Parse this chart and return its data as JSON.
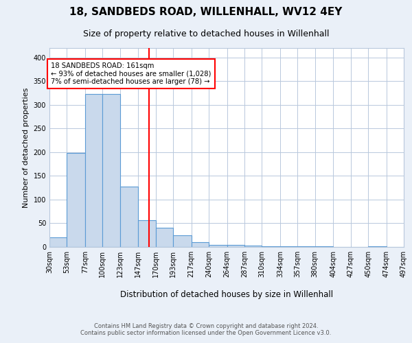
{
  "title": "18, SANDBEDS ROAD, WILLENHALL, WV12 4EY",
  "subtitle": "Size of property relative to detached houses in Willenhall",
  "xlabel": "Distribution of detached houses by size in Willenhall",
  "ylabel": "Number of detached properties",
  "bin_edges": [
    30,
    53,
    77,
    100,
    123,
    147,
    170,
    193,
    217,
    240,
    264,
    287,
    310,
    334,
    357,
    380,
    404,
    427,
    450,
    474,
    497
  ],
  "bar_heights": [
    20,
    198,
    323,
    323,
    128,
    57,
    40,
    25,
    10,
    5,
    5,
    3,
    2,
    2,
    1,
    1,
    0,
    0,
    1,
    0
  ],
  "bar_color": "#c9d9ec",
  "bar_edge_color": "#5b9bd5",
  "property_size": 161,
  "vline_color": "red",
  "annotation_text": "18 SANDBEDS ROAD: 161sqm\n← 93% of detached houses are smaller (1,028)\n7% of semi-detached houses are larger (78) →",
  "annotation_box_color": "white",
  "annotation_box_edge_color": "red",
  "ylim": [
    0,
    420
  ],
  "yticks": [
    0,
    50,
    100,
    150,
    200,
    250,
    300,
    350,
    400
  ],
  "footer": "Contains HM Land Registry data © Crown copyright and database right 2024.\nContains public sector information licensed under the Open Government Licence v3.0.",
  "background_color": "#eaf0f8",
  "plot_bg_color": "white",
  "grid_color": "#b8c8dc"
}
